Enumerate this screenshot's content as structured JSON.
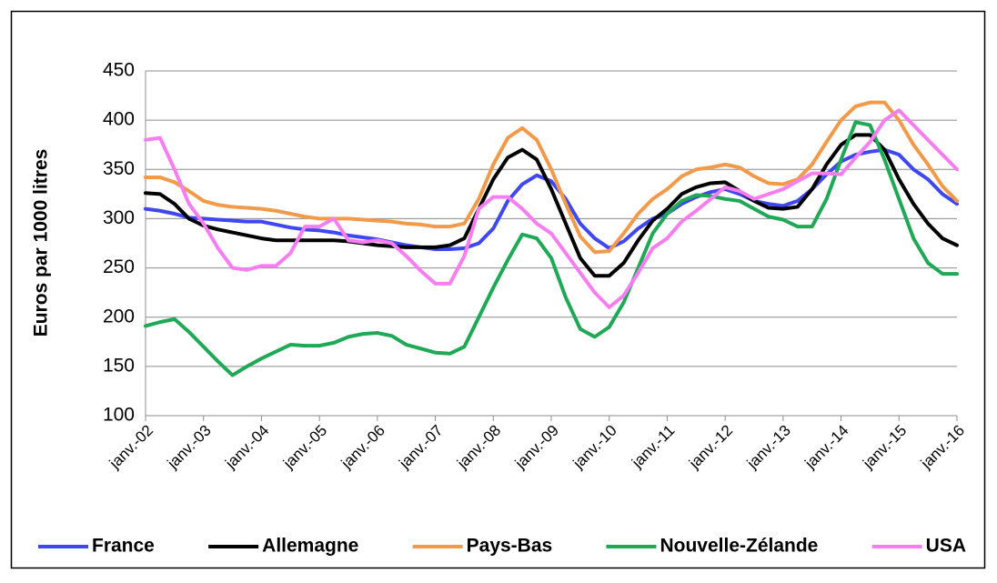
{
  "chart_data": {
    "type": "line",
    "y_label": "Euros par 1000 litres",
    "categories": [
      "janv.-02",
      null,
      null,
      null,
      "janv.-03",
      null,
      null,
      null,
      "janv.-04",
      null,
      null,
      null,
      "janv.-05",
      null,
      null,
      null,
      "janv.-06",
      null,
      null,
      null,
      "janv.-07",
      null,
      null,
      null,
      "janv.-08",
      null,
      null,
      null,
      "janv.-09",
      null,
      null,
      null,
      "janv.-10",
      null,
      null,
      null,
      "janv.-11",
      null,
      null,
      null,
      "janv.-12",
      null,
      null,
      null,
      "janv.-13",
      null,
      null,
      null,
      "janv.-14",
      null,
      null,
      null,
      "janv.-15",
      null,
      null,
      null,
      "janv.-16"
    ],
    "series": [
      {
        "name": "France",
        "color": "#3f48f0",
        "values": [
          310,
          308,
          305,
          301,
          300,
          299,
          298,
          297,
          297,
          294,
          291,
          289,
          288,
          286,
          283,
          281,
          279,
          276,
          273,
          271,
          269,
          269,
          270,
          275,
          290,
          318,
          335,
          344,
          338,
          320,
          295,
          280,
          270,
          277,
          290,
          300,
          305,
          315,
          322,
          327,
          330,
          325,
          318,
          315,
          313,
          318,
          330,
          345,
          358,
          365,
          368,
          370,
          365,
          350,
          340,
          325,
          315
        ]
      },
      {
        "name": "Allemagne",
        "color": "#000000",
        "values": [
          326,
          325,
          315,
          300,
          293,
          289,
          286,
          283,
          280,
          278,
          278,
          278,
          278,
          278,
          277,
          275,
          273,
          272,
          271,
          271,
          271,
          273,
          280,
          310,
          340,
          362,
          370,
          360,
          330,
          295,
          260,
          242,
          242,
          255,
          278,
          298,
          310,
          325,
          332,
          336,
          337,
          328,
          318,
          311,
          310,
          312,
          330,
          355,
          375,
          385,
          385,
          370,
          340,
          315,
          295,
          280,
          273
        ]
      },
      {
        "name": "Pays-Bas",
        "color": "#f39a4a",
        "values": [
          342,
          342,
          337,
          328,
          318,
          314,
          312,
          311,
          310,
          308,
          305,
          302,
          300,
          300,
          300,
          299,
          298,
          297,
          295,
          294,
          292,
          292,
          295,
          320,
          355,
          382,
          392,
          380,
          350,
          315,
          282,
          266,
          267,
          285,
          305,
          320,
          330,
          343,
          350,
          352,
          355,
          352,
          343,
          336,
          335,
          340,
          355,
          378,
          400,
          414,
          418,
          418,
          400,
          375,
          355,
          333,
          318
        ]
      },
      {
        "name": "Nouvelle-Zélande",
        "color": "#1fa855",
        "values": [
          191,
          195,
          198,
          185,
          170,
          155,
          141,
          150,
          158,
          165,
          172,
          171,
          171,
          174,
          180,
          183,
          184,
          181,
          172,
          168,
          164,
          163,
          170,
          200,
          230,
          258,
          284,
          280,
          260,
          220,
          188,
          180,
          190,
          215,
          250,
          285,
          305,
          318,
          324,
          323,
          320,
          318,
          310,
          302,
          299,
          292,
          292,
          320,
          360,
          398,
          395,
          360,
          320,
          280,
          255,
          244,
          244
        ]
      },
      {
        "name": "USA",
        "color": "#f77ef0",
        "values": [
          380,
          382,
          350,
          315,
          295,
          270,
          250,
          248,
          252,
          252,
          265,
          292,
          292,
          300,
          278,
          276,
          278,
          275,
          262,
          247,
          234,
          234,
          262,
          310,
          322,
          322,
          310,
          295,
          285,
          265,
          245,
          225,
          210,
          222,
          245,
          270,
          280,
          297,
          308,
          320,
          332,
          328,
          320,
          325,
          330,
          338,
          346,
          346,
          345,
          362,
          378,
          400,
          410,
          395,
          380,
          365,
          350
        ]
      }
    ],
    "ylim": [
      100,
      450
    ],
    "yticks": [
      100,
      150,
      200,
      250,
      300,
      350,
      400,
      450
    ],
    "grid": true,
    "legend": "bottom"
  }
}
